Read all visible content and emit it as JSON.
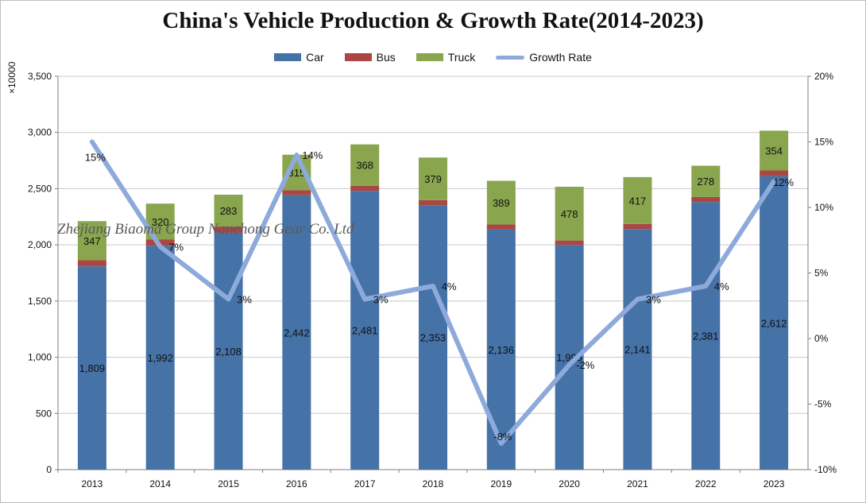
{
  "chart_data": {
    "type": "bar",
    "title": "China's Vehicle Production & Growth Rate(2014-2023)",
    "y_unit_label": "×10000",
    "categories": [
      "2013",
      "2014",
      "2015",
      "2016",
      "2017",
      "2018",
      "2019",
      "2020",
      "2021",
      "2022",
      "2023"
    ],
    "stacked": true,
    "series": [
      {
        "name": "Car",
        "color": "#4572a7",
        "values": [
          1809,
          1992,
          2108,
          2442,
          2481,
          2353,
          2136,
          1999,
          2141,
          2381,
          2612
        ]
      },
      {
        "name": "Bus",
        "color": "#aa4643",
        "values": [
          55,
          55,
          55,
          45,
          45,
          45,
          45,
          40,
          45,
          45,
          50
        ]
      },
      {
        "name": "Truck",
        "color": "#89a54e",
        "values": [
          347,
          320,
          283,
          315,
          368,
          379,
          389,
          478,
          417,
          278,
          354
        ]
      }
    ],
    "line_series": {
      "name": "Growth Rate",
      "color": "#8eaadb",
      "axis": "right",
      "values": [
        15,
        7,
        3,
        14,
        3,
        4,
        -8,
        -2,
        3,
        4,
        12
      ],
      "labels": [
        "15%",
        "7%",
        "3%",
        "14%",
        "3%",
        "4%",
        "-8%",
        "-2%",
        "3%",
        "4%",
        "12%"
      ]
    },
    "y_left": {
      "min": 0,
      "max": 3500,
      "ticks": [
        "0",
        "500",
        "1,000",
        "1,500",
        "2,000",
        "2,500",
        "3,000",
        "3,500"
      ]
    },
    "y_right": {
      "min": -10,
      "max": 20,
      "ticks": [
        "-10%",
        "-5%",
        "0%",
        "5%",
        "10%",
        "15%",
        "20%"
      ]
    },
    "grid": true,
    "legend_position": "top"
  },
  "watermark": "Zhejiang Biaoma Group Nanchong Gear Co. Ltd"
}
